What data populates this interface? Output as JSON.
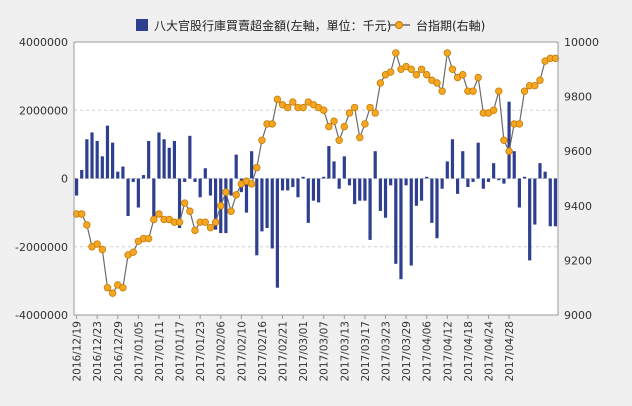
{
  "legend": {
    "bar_label": "八大官股行庫買賣超金額(左軸，單位：千元)",
    "line_label": "台指期(右軸)"
  },
  "colors": {
    "bar": "#2e3f8f",
    "line": "#6b6b6b",
    "marker": "#f5a623",
    "marker_stroke": "#c67c00",
    "grid": "#d0d0d0",
    "plot_bg": "#ffffff",
    "page_bg": "#f0f0f0"
  },
  "chart_data": {
    "type": "bar+line",
    "title": "",
    "y_left": {
      "label": "",
      "ylim": [
        -4000000,
        4000000
      ],
      "ticks": [
        -4000000,
        -2000000,
        0,
        2000000,
        4000000
      ]
    },
    "y_right": {
      "label": "",
      "ylim": [
        9000,
        10000
      ],
      "ticks": [
        9000,
        9200,
        9400,
        9600,
        9800,
        10000
      ]
    },
    "grid": true,
    "legend_position": "top",
    "x_tick_labels": [
      "2016/12/19",
      "2016/12/23",
      "2016/12/29",
      "2017/01/05",
      "2017/01/11",
      "2017/01/17",
      "2017/01/23",
      "2017/02/06",
      "2017/02/10",
      "2017/02/16",
      "2017/02/21",
      "2017/03/01",
      "2017/03/07",
      "2017/03/13",
      "2017/03/17",
      "2017/03/23",
      "2017/03/29",
      "2017/04/06",
      "2017/04/12",
      "2017/04/18",
      "2017/04/24",
      "2017/04/28"
    ],
    "x_tick_every": 4,
    "series": [
      {
        "name": "八大官股行庫買賣超金額(左軸，單位：千元)",
        "type": "bar",
        "axis": "left",
        "values": [
          -500000,
          250000,
          1150000,
          1350000,
          1100000,
          650000,
          1550000,
          1050000,
          200000,
          350000,
          -1100000,
          -100000,
          -850000,
          100000,
          1100000,
          -1200000,
          1350000,
          1150000,
          900000,
          1100000,
          -1450000,
          -100000,
          1250000,
          -100000,
          -550000,
          300000,
          -500000,
          -1500000,
          -1600000,
          -1600000,
          -500000,
          700000,
          -400000,
          -1000000,
          800000,
          -2250000,
          -1550000,
          -1450000,
          -2050000,
          -3200000,
          -350000,
          -350000,
          -250000,
          -550000,
          50000,
          -1300000,
          -650000,
          -700000,
          50000,
          950000,
          500000,
          -300000,
          650000,
          -200000,
          -750000,
          -650000,
          -650000,
          -1800000,
          800000,
          -950000,
          -1150000,
          -200000,
          -2500000,
          -2950000,
          -200000,
          -2550000,
          -800000,
          -650000,
          50000,
          -1300000,
          -1750000,
          -300000,
          500000,
          1150000,
          -450000,
          800000,
          -250000,
          -100000,
          1050000,
          -300000,
          -100000,
          450000,
          -50000,
          -150000,
          2250000,
          800000,
          -850000,
          50000,
          -2400000,
          -1350000,
          450000,
          200000,
          -1400000,
          -1400000
        ]
      },
      {
        "name": "台指期(右軸)",
        "type": "line",
        "axis": "right",
        "values": [
          9370,
          9370,
          9330,
          9250,
          9260,
          9240,
          9100,
          9080,
          9110,
          9100,
          9220,
          9230,
          9270,
          9280,
          9280,
          9350,
          9370,
          9350,
          9350,
          9340,
          9340,
          9410,
          9380,
          9310,
          9340,
          9340,
          9320,
          9340,
          9400,
          9450,
          9380,
          9440,
          9480,
          9490,
          9480,
          9540,
          9640,
          9700,
          9700,
          9790,
          9770,
          9760,
          9780,
          9760,
          9760,
          9780,
          9770,
          9760,
          9750,
          9690,
          9710,
          9640,
          9690,
          9740,
          9760,
          9650,
          9700,
          9760,
          9740,
          9850,
          9880,
          9890,
          9960,
          9900,
          9910,
          9900,
          9880,
          9900,
          9880,
          9860,
          9850,
          9820,
          9960,
          9900,
          9870,
          9880,
          9820,
          9820,
          9870,
          9740,
          9740,
          9750,
          9820,
          9640,
          9600,
          9700,
          9700,
          9820,
          9840,
          9840,
          9860,
          9930,
          9940,
          9940
        ]
      }
    ]
  }
}
